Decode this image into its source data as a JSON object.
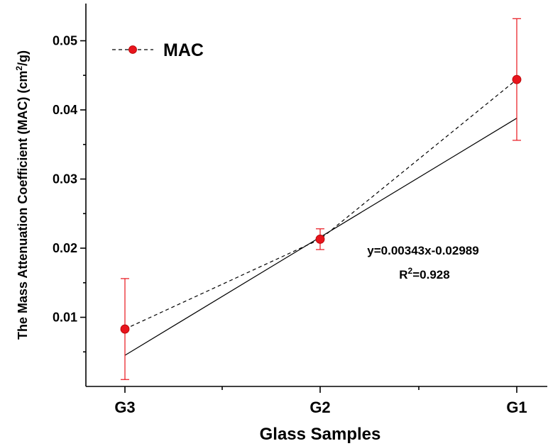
{
  "chart_data": {
    "type": "scatter",
    "categories": [
      "G3",
      "G2",
      "G1"
    ],
    "series": [
      {
        "name": "MAC",
        "values": [
          0.0083,
          0.0213,
          0.0444
        ],
        "error": [
          0.0073,
          0.0015,
          0.0088
        ],
        "color": "#e8141c",
        "line_style": "dashed"
      }
    ],
    "fit": {
      "equation": "y=0.00343x-0.02989",
      "r2_prefix": "R",
      "r2_sup": "2",
      "r2_value": "=0.928",
      "start": 0.0045,
      "end": 0.0388
    },
    "xlabel": "Glass Samples",
    "ylabel_main": "The Mass Attenuation Coefficient (MAC) (cm",
    "ylabel_sup": "2",
    "ylabel_end": "/g)",
    "ylim": [
      0,
      0.056
    ],
    "yticks": [
      0.01,
      0.02,
      0.03,
      0.04,
      0.05
    ],
    "ytick_labels": [
      "0.01",
      "0.02",
      "0.03",
      "0.04",
      "0.05"
    ],
    "legend": {
      "label": "MAC",
      "position": "top-left"
    },
    "grid": false
  }
}
